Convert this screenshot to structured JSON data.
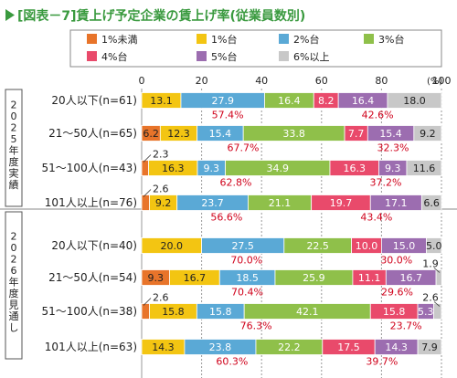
{
  "chart_data": {
    "type": "bar",
    "orientation": "horizontal",
    "stacked": true,
    "title": "[図表－7]賃上げ予定企業の賃上げ率(従業員数別)",
    "unit": "(%)",
    "xlim": [
      0,
      100
    ],
    "xticks": [
      "0",
      "20",
      "40",
      "60",
      "80",
      "100"
    ],
    "legend_position": "top",
    "legend": [
      {
        "name": "1%未満",
        "color": "#e8742a"
      },
      {
        "name": "1%台",
        "color": "#f3c512"
      },
      {
        "name": "2%台",
        "color": "#5aa9d6"
      },
      {
        "name": "3%台",
        "color": "#8fc04a"
      },
      {
        "name": "4%台",
        "color": "#e94a6b"
      },
      {
        "name": "5%台",
        "color": "#9c6db0"
      },
      {
        "name": "6%以上",
        "color": "#c8c8c8"
      }
    ],
    "groups": [
      {
        "label": "2025年度実績",
        "rows": [
          {
            "category": "20人以下(n=61)",
            "values": [
              0,
              13.1,
              27.9,
              16.4,
              8.2,
              16.4,
              18.0
            ],
            "labels": [
              "",
              "13.1",
              "27.9",
              "16.4",
              "8.2",
              "16.4",
              "18.0"
            ],
            "below_left": "57.4%",
            "below_right": "42.6%"
          },
          {
            "category": "21〜50人(n=65)",
            "values": [
              6.2,
              12.3,
              15.4,
              33.8,
              7.7,
              15.4,
              9.2
            ],
            "labels": [
              "6.2",
              "12.3",
              "15.4",
              "33.8",
              "7.7",
              "15.4",
              "9.2"
            ],
            "below_left": "67.7%",
            "below_right": "32.3%"
          },
          {
            "category": "51〜100人(n=43)",
            "values": [
              2.3,
              16.3,
              9.3,
              34.9,
              16.3,
              9.3,
              11.6
            ],
            "labels": [
              "",
              "16.3",
              "9.3",
              "34.9",
              "16.3",
              "9.3",
              "11.6"
            ],
            "above_left": "2.3",
            "below_left": "62.8%",
            "below_right": "37.2%"
          },
          {
            "category": "101人以上(n=76)",
            "values": [
              2.6,
              9.2,
              23.7,
              21.1,
              19.7,
              17.1,
              6.6
            ],
            "labels": [
              "",
              "9.2",
              "23.7",
              "21.1",
              "19.7",
              "17.1",
              "6.6"
            ],
            "above_left": "2.6",
            "below_left": "56.6%",
            "below_right": "43.4%"
          }
        ]
      },
      {
        "label": "2026年度見通し",
        "rows": [
          {
            "category": "20人以下(n=40)",
            "values": [
              0,
              20.0,
              27.5,
              22.5,
              10.0,
              15.0,
              5.0
            ],
            "labels": [
              "",
              "20.0",
              "27.5",
              "22.5",
              "10.0",
              "15.0",
              "5.0"
            ],
            "below_left": "70.0%",
            "below_right": "30.0%"
          },
          {
            "category": "21〜50人(n=54)",
            "values": [
              9.3,
              16.7,
              18.5,
              25.9,
              11.1,
              16.7,
              1.9
            ],
            "labels": [
              "9.3",
              "16.7",
              "18.5",
              "25.9",
              "11.1",
              "16.7",
              ""
            ],
            "above_right": "1.9",
            "below_left": "70.4%",
            "below_right": "29.6%"
          },
          {
            "category": "51〜100人(n=38)",
            "values": [
              2.6,
              15.8,
              15.8,
              42.1,
              15.8,
              5.3,
              2.6
            ],
            "labels": [
              "",
              "15.8",
              "15.8",
              "42.1",
              "15.8",
              "5.3",
              ""
            ],
            "above_left": "2.6",
            "above_right": "2.6",
            "below_left": "76.3%",
            "below_right": "23.7%"
          },
          {
            "category": "101人以上(n=63)",
            "values": [
              0,
              14.3,
              23.8,
              22.2,
              17.5,
              14.3,
              7.9
            ],
            "labels": [
              "",
              "14.3",
              "23.8",
              "22.2",
              "17.5",
              "14.3",
              "7.9"
            ],
            "below_left": "60.3%",
            "below_right": "39.7%"
          }
        ]
      }
    ]
  }
}
